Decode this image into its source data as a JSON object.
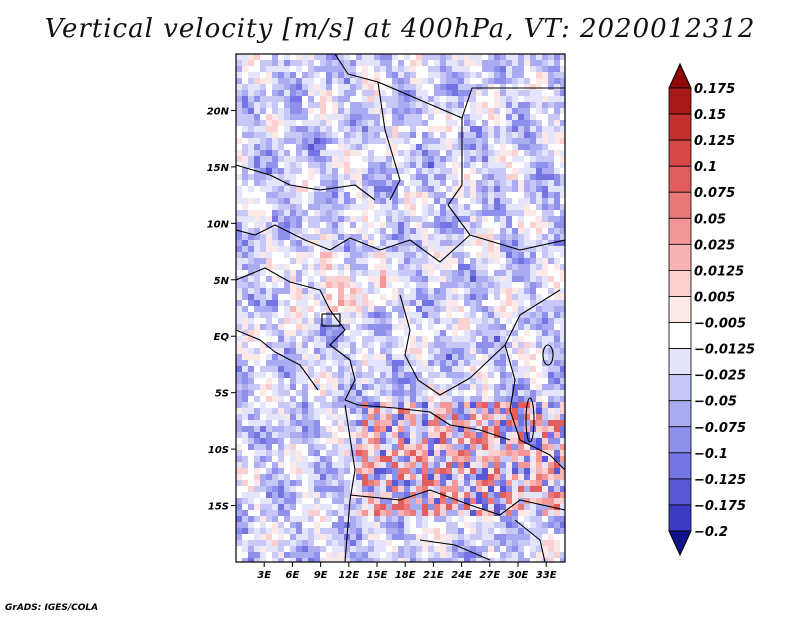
{
  "chart_data": {
    "type": "heatmap",
    "title": "Vertical velocity [m/s] at 400hPa, VT: 2020012312",
    "variable": "Vertical velocity",
    "units": "m/s",
    "level": "400hPa",
    "valid_time": "2020012312",
    "x_axis": {
      "range": [
        0,
        35
      ],
      "ticks": [
        {
          "value": 3,
          "label": "3E"
        },
        {
          "value": 6,
          "label": "6E"
        },
        {
          "value": 9,
          "label": "9E"
        },
        {
          "value": 12,
          "label": "12E"
        },
        {
          "value": 15,
          "label": "15E"
        },
        {
          "value": 18,
          "label": "18E"
        },
        {
          "value": 21,
          "label": "21E"
        },
        {
          "value": 24,
          "label": "24E"
        },
        {
          "value": 27,
          "label": "27E"
        },
        {
          "value": 30,
          "label": "30E"
        },
        {
          "value": 33,
          "label": "33E"
        }
      ]
    },
    "y_axis": {
      "range": [
        -20,
        25
      ],
      "ticks": [
        {
          "value": 20,
          "label": "20N"
        },
        {
          "value": 15,
          "label": "15N"
        },
        {
          "value": 10,
          "label": "10N"
        },
        {
          "value": 5,
          "label": "5N"
        },
        {
          "value": 0,
          "label": "EQ"
        },
        {
          "value": -5,
          "label": "5S"
        },
        {
          "value": -10,
          "label": "10S"
        },
        {
          "value": -15,
          "label": "15S"
        }
      ]
    },
    "colorbar": {
      "levels": [
        {
          "label": "0.175",
          "color": "#a81a1a"
        },
        {
          "label": "0.15",
          "color": "#c23030"
        },
        {
          "label": "0.125",
          "color": "#d64848"
        },
        {
          "label": "0.1",
          "color": "#e25e5e"
        },
        {
          "label": "0.075",
          "color": "#ea7a7a"
        },
        {
          "label": "0.05",
          "color": "#f29696"
        },
        {
          "label": "0.025",
          "color": "#f8b4b4"
        },
        {
          "label": "0.0125",
          "color": "#fbd0d0"
        },
        {
          "label": "0.005",
          "color": "#fde8e8"
        },
        {
          "label": "−0.005",
          "color": "#ffffff"
        },
        {
          "label": "−0.0125",
          "color": "#e4e4fb"
        },
        {
          "label": "−0.025",
          "color": "#c8c8f6"
        },
        {
          "label": "−0.05",
          "color": "#ababf1"
        },
        {
          "label": "−0.075",
          "color": "#8f8fec"
        },
        {
          "label": "−0.1",
          "color": "#7474e2"
        },
        {
          "label": "−0.125",
          "color": "#5858d4"
        },
        {
          "label": "−0.175",
          "color": "#3a3ac2"
        },
        {
          "label": "−0.2",
          "color": "#2222a8"
        }
      ],
      "top_arrow_color": "#8c0a0a",
      "bottom_arrow_color": "#12128a"
    }
  },
  "footer": {
    "credit": "GrADS: IGES/COLA"
  }
}
